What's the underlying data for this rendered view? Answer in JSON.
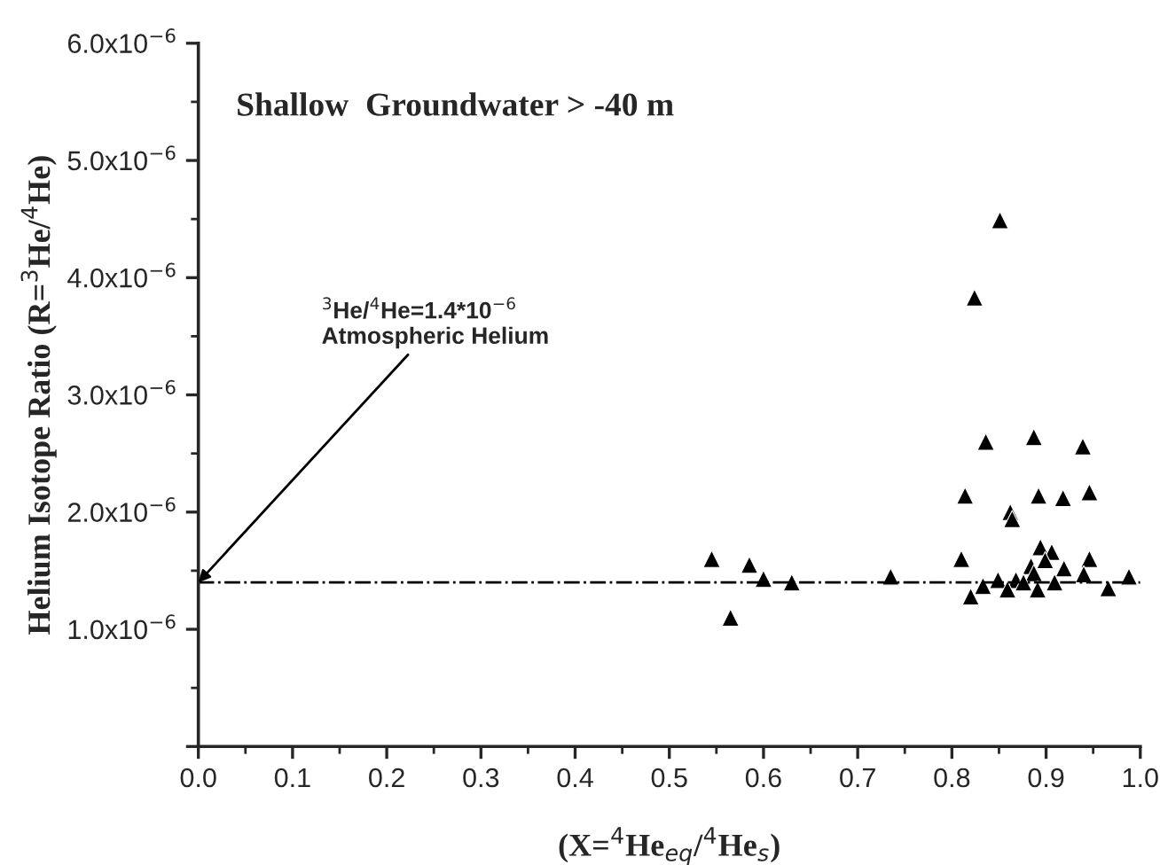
{
  "chart_data": {
    "type": "scatter",
    "title": "Shallow  Groundwater > -40 m",
    "xlabel": "(X=$^{4}$He$_{eq}$/$^{4}$He$_{s}$)",
    "ylabel": "Helium Isotope Ratio (R=$^{3}$He/$^{4}$He)",
    "xlim": [
      0,
      1
    ],
    "ylim": [
      0,
      6e-06
    ],
    "xticks": [
      {
        "value": 0,
        "label": "0.0"
      },
      {
        "value": 0.1,
        "label": "0.1"
      },
      {
        "value": 0.2,
        "label": "0.2"
      },
      {
        "value": 0.3,
        "label": "0.3"
      },
      {
        "value": 0.4,
        "label": "0.4"
      },
      {
        "value": 0.5,
        "label": "0.5"
      },
      {
        "value": 0.6,
        "label": "0.6"
      },
      {
        "value": 0.7,
        "label": "0.7"
      },
      {
        "value": 0.8,
        "label": "0.8"
      },
      {
        "value": 0.9,
        "label": "0.9"
      },
      {
        "value": 1,
        "label": "1.0"
      }
    ],
    "yticks": [
      {
        "value": 0,
        "label": null
      },
      {
        "value": 1e-06,
        "label": "1.0x10$^{−6}$"
      },
      {
        "value": 2e-06,
        "label": "2.0x10$^{−6}$"
      },
      {
        "value": 3e-06,
        "label": "3.0x10$^{−6}$"
      },
      {
        "value": 4e-06,
        "label": "4.0x10$^{−6}$"
      },
      {
        "value": 5e-06,
        "label": "5.0x10$^{−6}$"
      },
      {
        "value": 6e-06,
        "label": "6.0x10$^{−6}$"
      }
    ],
    "marker": "triangle",
    "grid": false,
    "legend": false,
    "series": [
      {
        "color": "#000000",
        "x": [
          0.545,
          0.565,
          0.585,
          0.6,
          0.63,
          0.735,
          0.851,
          0.824,
          0.836,
          0.887,
          0.939,
          0.814,
          0.892,
          0.918,
          0.946,
          0.862,
          0.864,
          0.81,
          0.894,
          0.906,
          0.899,
          0.884,
          0.919,
          0.946,
          0.94,
          0.988,
          0.887,
          0.833,
          0.849,
          0.868,
          0.82,
          0.859,
          0.876,
          0.891,
          0.909,
          0.966
        ],
        "values": [
          1.6e-06,
          1.1e-06,
          1.55e-06,
          1.43e-06,
          1.4e-06,
          1.45e-06,
          4.49e-06,
          3.83e-06,
          2.6e-06,
          2.64e-06,
          2.56e-06,
          2.14e-06,
          2.14e-06,
          2.12e-06,
          2.17e-06,
          2e-06,
          1.94e-06,
          1.6e-06,
          1.7e-06,
          1.66e-06,
          1.59e-06,
          1.54e-06,
          1.52e-06,
          1.6e-06,
          1.47e-06,
          1.45e-06,
          1.48e-06,
          1.37e-06,
          1.42e-06,
          1.42e-06,
          1.28e-06,
          1.34e-06,
          1.4e-06,
          1.34e-06,
          1.4e-06,
          1.35e-06
        ]
      }
    ],
    "ref_lines": [
      {
        "axis": "y",
        "value": 1.4e-06,
        "color": "#000000",
        "line_style": "dashdot"
      }
    ],
    "annotations": [
      {
        "text": "$^{3}$He/$^{4}$He=1.4*10$^{−6}$\nAtmospheric Helium",
        "x": 0,
        "y": 1.4e-06
      }
    ]
  }
}
